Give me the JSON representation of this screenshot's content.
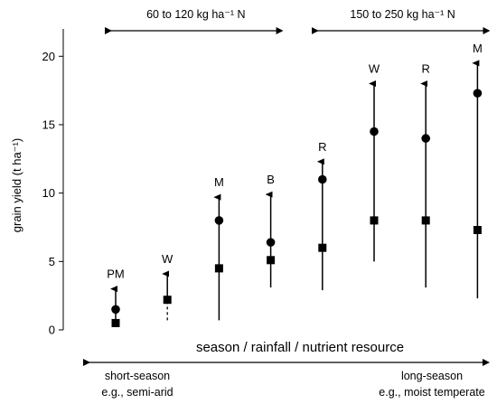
{
  "chart_data": {
    "type": "scatter",
    "ylabel": "grain yield (t ha⁻¹)",
    "xlabel": "season / rainfall / nutrient resource",
    "ylim": [
      0,
      22
    ],
    "yticks": [
      0,
      5,
      10,
      15,
      20
    ],
    "n_rate_groups": [
      {
        "label": "60 to 120 kg ha⁻¹ N",
        "from_index": 0,
        "to_index": 3
      },
      {
        "label": "150 to 250 kg ha⁻¹ N",
        "from_index": 4,
        "to_index": 7
      }
    ],
    "gradient_left_label": [
      "short-season",
      "e.g., semi-arid"
    ],
    "gradient_right_label": [
      "long-season",
      "e.g., moist temperate"
    ],
    "items": [
      {
        "label": "PM",
        "circle": 1.5,
        "square": 0.5,
        "low": 0.2,
        "high": 3.0,
        "dashed_low": false
      },
      {
        "label": "W",
        "circle": null,
        "square": 2.2,
        "low": 0.7,
        "high": 4.1,
        "dashed_low": true
      },
      {
        "label": "M",
        "circle": 8.0,
        "square": 4.5,
        "low": 0.7,
        "high": 9.7,
        "dashed_low": false
      },
      {
        "label": "B",
        "circle": 6.4,
        "square": 5.1,
        "low": 3.1,
        "high": 9.9,
        "dashed_low": false
      },
      {
        "label": "R",
        "circle": 11.0,
        "square": 6.0,
        "low": 2.9,
        "high": 12.3,
        "dashed_low": false
      },
      {
        "label": "W",
        "circle": 14.5,
        "square": 8.0,
        "low": 5.0,
        "high": 18.0,
        "dashed_low": false
      },
      {
        "label": "R",
        "circle": 14.0,
        "square": 8.0,
        "low": 3.1,
        "high": 18.0,
        "dashed_low": false
      },
      {
        "label": "M",
        "circle": 17.3,
        "square": 7.3,
        "low": 2.3,
        "high": 19.5,
        "dashed_low": false
      }
    ]
  }
}
